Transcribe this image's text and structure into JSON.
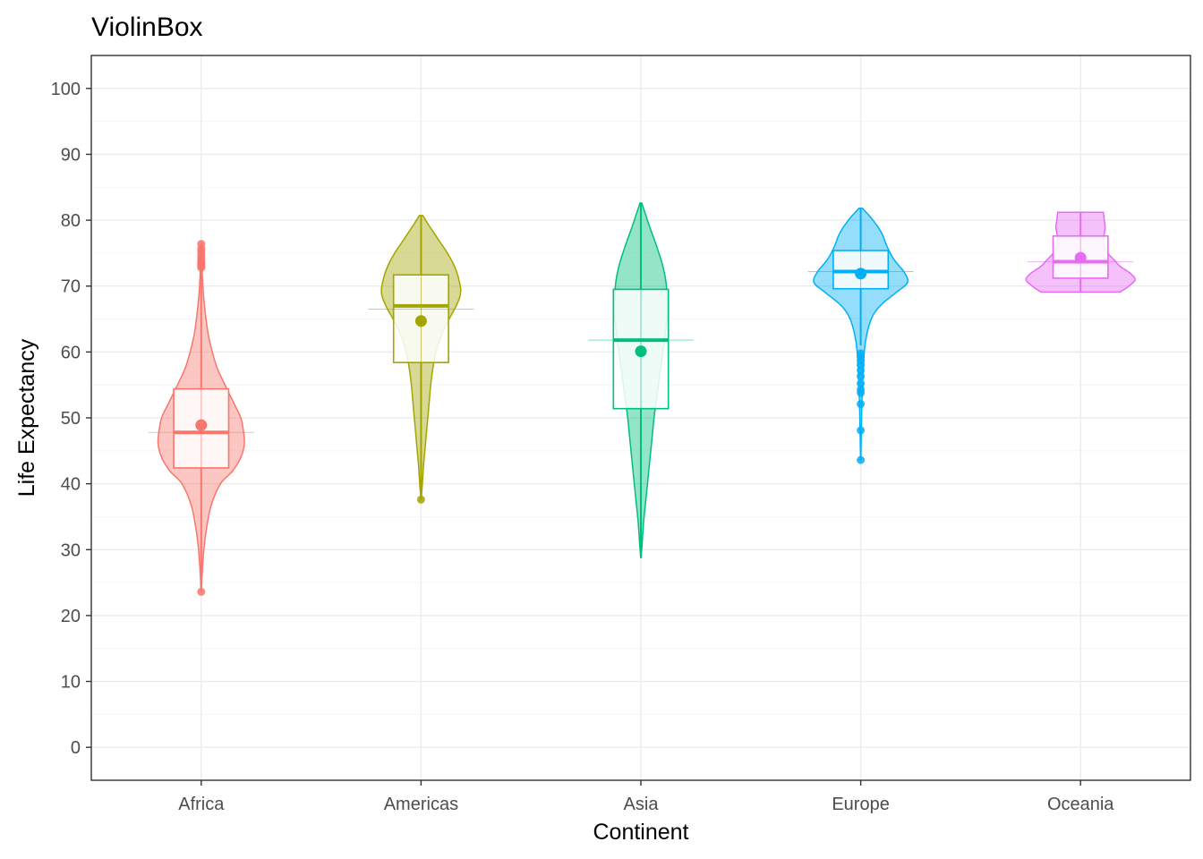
{
  "chart_data": {
    "type": "violin",
    "title": "ViolinBox",
    "xlabel": "Continent",
    "ylabel": "Life Expectancy",
    "ylim": [
      -5,
      105
    ],
    "yticks": [
      0,
      10,
      20,
      30,
      40,
      50,
      60,
      70,
      80,
      90,
      100
    ],
    "grid": true,
    "legend": "none",
    "categories": [
      "Africa",
      "Americas",
      "Asia",
      "Europe",
      "Oceania"
    ],
    "series": [
      {
        "category": "Africa",
        "color": "#F8766D",
        "box": {
          "q1": 42.4,
          "median": 47.8,
          "q3": 54.4,
          "whisker_low": 23.6,
          "whisker_high": 72.4
        },
        "mean": 48.9,
        "outliers": [
          72.8,
          73.0,
          73.2,
          73.4,
          73.6,
          73.9,
          74.3,
          74.8,
          75.3,
          75.7,
          76.4
        ],
        "density": [
          [
            23.6,
            0.002
          ],
          [
            26,
            0.01
          ],
          [
            30,
            0.03
          ],
          [
            34,
            0.07
          ],
          [
            37,
            0.12
          ],
          [
            40,
            0.22
          ],
          [
            42,
            0.36
          ],
          [
            44,
            0.45
          ],
          [
            46,
            0.49
          ],
          [
            48,
            0.48
          ],
          [
            50,
            0.45
          ],
          [
            52,
            0.38
          ],
          [
            55,
            0.27
          ],
          [
            58,
            0.17
          ],
          [
            62,
            0.09
          ],
          [
            65,
            0.055
          ],
          [
            68,
            0.03
          ],
          [
            71,
            0.015
          ],
          [
            74,
            0.008
          ],
          [
            76.6,
            0.002
          ]
        ]
      },
      {
        "category": "Americas",
        "color": "#A3A500",
        "box": {
          "q1": 58.4,
          "median": 67.0,
          "q3": 71.7,
          "whisker_low": 37.6,
          "whisker_high": 80.7
        },
        "mean": 64.7,
        "outliers": [],
        "density": [
          [
            37.6,
            0.002
          ],
          [
            40,
            0.015
          ],
          [
            43,
            0.03
          ],
          [
            46,
            0.05
          ],
          [
            49,
            0.07
          ],
          [
            52,
            0.09
          ],
          [
            55,
            0.11
          ],
          [
            58,
            0.14
          ],
          [
            61,
            0.19
          ],
          [
            64,
            0.28
          ],
          [
            67,
            0.4
          ],
          [
            69,
            0.45
          ],
          [
            71,
            0.43
          ],
          [
            73,
            0.38
          ],
          [
            75,
            0.3
          ],
          [
            77,
            0.2
          ],
          [
            79,
            0.1
          ],
          [
            80.7,
            0.02
          ]
        ]
      },
      {
        "category": "Asia",
        "color": "#00BF7D",
        "box": {
          "q1": 51.4,
          "median": 61.8,
          "q3": 69.5,
          "whisker_low": 28.8,
          "whisker_high": 82.6
        },
        "mean": 60.1,
        "outliers": [],
        "density": [
          [
            28.8,
            0.002
          ],
          [
            31,
            0.015
          ],
          [
            34,
            0.03
          ],
          [
            38,
            0.06
          ],
          [
            42,
            0.09
          ],
          [
            46,
            0.12
          ],
          [
            50,
            0.15
          ],
          [
            54,
            0.19
          ],
          [
            58,
            0.23
          ],
          [
            62,
            0.27
          ],
          [
            66,
            0.3
          ],
          [
            70,
            0.29
          ],
          [
            73,
            0.25
          ],
          [
            76,
            0.18
          ],
          [
            79,
            0.1
          ],
          [
            81,
            0.05
          ],
          [
            82.6,
            0.01
          ]
        ]
      },
      {
        "category": "Europe",
        "color": "#00B0F6",
        "box": {
          "q1": 69.6,
          "median": 72.2,
          "q3": 75.4,
          "whisker_low": 61.0,
          "whisker_high": 81.8
        },
        "mean": 71.9,
        "outliers": [
          43.6,
          48.1,
          52.1,
          53.8,
          54.3,
          55.2,
          56.3,
          57.2,
          58.0,
          58.7,
          59.3,
          59.8
        ],
        "density": [
          [
            43.6,
            0.002
          ],
          [
            50,
            0.01
          ],
          [
            55,
            0.02
          ],
          [
            59,
            0.035
          ],
          [
            62,
            0.06
          ],
          [
            65,
            0.12
          ],
          [
            67,
            0.22
          ],
          [
            69,
            0.4
          ],
          [
            70.5,
            0.53
          ],
          [
            72,
            0.5
          ],
          [
            74,
            0.38
          ],
          [
            76,
            0.3
          ],
          [
            78,
            0.24
          ],
          [
            80,
            0.14
          ],
          [
            81.8,
            0.02
          ]
        ]
      },
      {
        "category": "Oceania",
        "color": "#E76BF3",
        "box": {
          "q1": 71.2,
          "median": 73.7,
          "q3": 77.6,
          "whisker_low": 69.1,
          "whisker_high": 81.2
        },
        "mean": 74.3,
        "outliers": [],
        "density": [
          [
            69.1,
            0.45
          ],
          [
            70,
            0.55
          ],
          [
            71,
            0.62
          ],
          [
            72,
            0.56
          ],
          [
            73,
            0.45
          ],
          [
            74,
            0.38
          ],
          [
            75,
            0.31
          ],
          [
            76,
            0.27
          ],
          [
            77,
            0.26
          ],
          [
            78,
            0.27
          ],
          [
            79,
            0.28
          ],
          [
            80,
            0.27
          ],
          [
            81.2,
            0.26
          ]
        ]
      }
    ]
  }
}
